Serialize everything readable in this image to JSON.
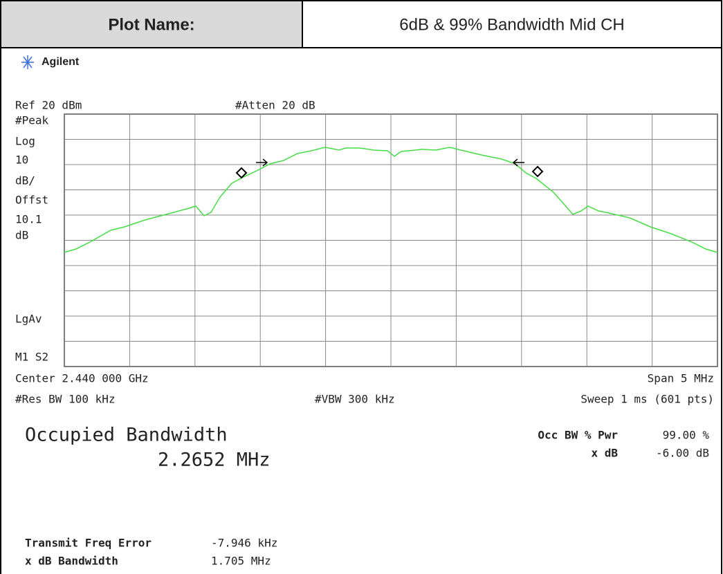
{
  "header": {
    "label": "Plot Name:",
    "value": "6dB & 99% Bandwidth Mid CH"
  },
  "brand": "Agilent",
  "top": {
    "ref": "Ref 20 dBm",
    "atten": "#Atten 20 dB"
  },
  "left_labels": [
    "#Peak",
    "Log",
    "10",
    "dB/",
    "Offst",
    "10.1",
    "dB",
    "LgAv",
    "M1  S2"
  ],
  "bottom": {
    "center": "Center 2.440 000 GHz",
    "span": "Span 5 MHz",
    "rbw": "#Res BW 100 kHz",
    "vbw": "#VBW 300 kHz",
    "sweep": "Sweep 1 ms (601 pts)"
  },
  "occupied": {
    "title": "Occupied Bandwidth",
    "value": "2.2652 MHz"
  },
  "right_results": [
    {
      "label": "Occ BW % Pwr",
      "value": "99.00 %"
    },
    {
      "label": "x dB",
      "value": "-6.00 dB"
    }
  ],
  "results": [
    {
      "label": "Transmit Freq Error",
      "value": "-7.946 kHz"
    },
    {
      "label": "x dB Bandwidth",
      "value": "1.705 MHz"
    }
  ]
}
